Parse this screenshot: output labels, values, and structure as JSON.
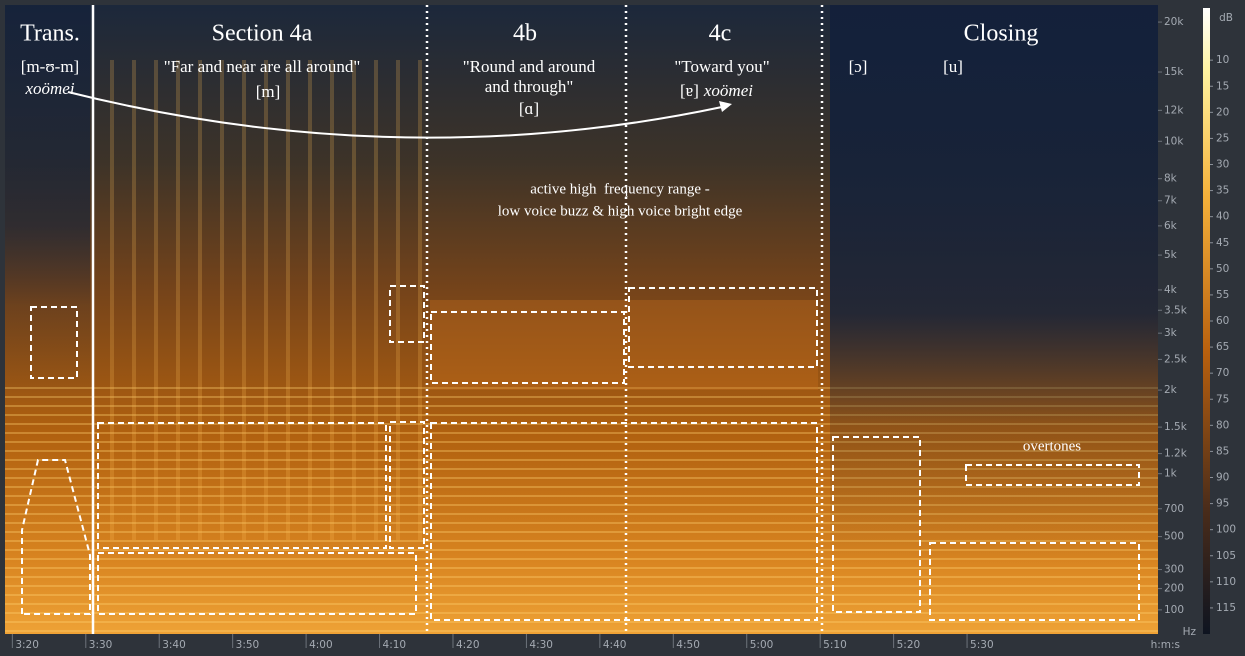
{
  "chart_data": {
    "type": "spectrogram",
    "x_label": "h:m:s",
    "y_label": "Hz",
    "colorbar_label": "dB",
    "y_scale": "mel",
    "xlim": [
      199,
      356
    ],
    "xticks": [
      {
        "value": 200,
        "label": "3:20"
      },
      {
        "value": 210,
        "label": "3:30"
      },
      {
        "value": 220,
        "label": "3:40"
      },
      {
        "value": 230,
        "label": "3:50"
      },
      {
        "value": 240,
        "label": "4:00"
      },
      {
        "value": 250,
        "label": "4:10"
      },
      {
        "value": 260,
        "label": "4:20"
      },
      {
        "value": 270,
        "label": "4:30"
      },
      {
        "value": 280,
        "label": "4:40"
      },
      {
        "value": 290,
        "label": "4:50"
      },
      {
        "value": 300,
        "label": "5:00"
      },
      {
        "value": 310,
        "label": "5:10"
      },
      {
        "value": 320,
        "label": "5:20"
      },
      {
        "value": 330,
        "label": "5:30"
      }
    ],
    "ylim": [
      0,
      22050
    ],
    "yticks": [
      {
        "value": 20000,
        "label": "20k"
      },
      {
        "value": 15000,
        "label": "15k"
      },
      {
        "value": 12000,
        "label": "12k"
      },
      {
        "value": 10000,
        "label": "10k"
      },
      {
        "value": 8000,
        "label": "8k"
      },
      {
        "value": 7000,
        "label": "7k"
      },
      {
        "value": 6000,
        "label": "6k"
      },
      {
        "value": 5000,
        "label": "5k"
      },
      {
        "value": 4000,
        "label": "4k"
      },
      {
        "value": 3500,
        "label": "3.5k"
      },
      {
        "value": 3000,
        "label": "3k"
      },
      {
        "value": 2500,
        "label": "2.5k"
      },
      {
        "value": 2000,
        "label": "2k"
      },
      {
        "value": 1500,
        "label": "1.5k"
      },
      {
        "value": 1200,
        "label": "1.2k"
      },
      {
        "value": 1000,
        "label": "1k"
      },
      700,
      500,
      300,
      200,
      100
    ],
    "clim": [
      0,
      120
    ],
    "cticks": [
      10,
      15,
      20,
      25,
      30,
      35,
      40,
      45,
      50,
      55,
      60,
      65,
      70,
      75,
      80,
      85,
      90,
      95,
      100,
      105,
      110,
      115
    ],
    "annotations": [
      "Trans.",
      "[m-ʊ-m]",
      "xoömei",
      "Section 4a",
      "\"Far and near are all around\"",
      "[m]",
      "4b",
      "\"Round and around",
      "and through\"",
      "[ɑ]",
      "4c",
      "\"Toward you\"",
      "[ɐ]",
      "xoömei",
      "Closing",
      "[ɔ]",
      "[u]",
      "active high  frequency range -",
      "low voice buzz & high voice bright edge",
      "overtones"
    ]
  }
}
